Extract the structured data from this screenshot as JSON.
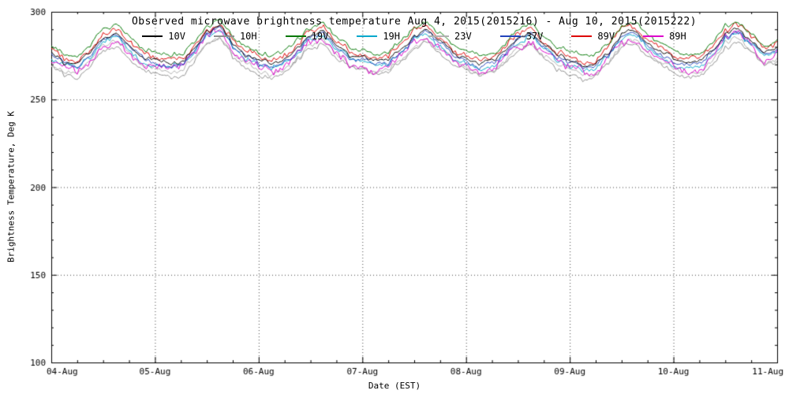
{
  "chart_data": {
    "type": "line",
    "title": "Observed microwave brightness temperature Aug 4, 2015(2015216) - Aug 10, 2015(2015222)",
    "xlabel": "Date (EST)",
    "ylabel": "Brightness Temperature, Deg K",
    "ylim": [
      100,
      300
    ],
    "xlim_days": [
      0,
      7
    ],
    "grid": "dotted",
    "legend_position": "top-inside",
    "yticks": [
      100,
      150,
      200,
      250,
      300
    ],
    "ytick_minor_step": 10,
    "xticks": [
      "04-Aug",
      "05-Aug",
      "06-Aug",
      "07-Aug",
      "08-Aug",
      "09-Aug",
      "10-Aug",
      "11-Aug"
    ],
    "xtick_minor_step_days": 0.25,
    "baseline_anchor_step_hours": 3,
    "baseline_mean_K": [
      276,
      271,
      270,
      276,
      285,
      288,
      280,
      274,
      272,
      270,
      271,
      278,
      288,
      291,
      282,
      275,
      272,
      270,
      272,
      279,
      287,
      289,
      281,
      275,
      273,
      271,
      272,
      278,
      286,
      290,
      283,
      276,
      273,
      270,
      271,
      277,
      285,
      288,
      281,
      275,
      272,
      269,
      270,
      277,
      286,
      289,
      282,
      276,
      273,
      270,
      271,
      278,
      287,
      290,
      283,
      277,
      278
    ],
    "series": [
      {
        "name": "10V",
        "color": "#000000",
        "offset_K": 0.5,
        "noise_K": 0.9
      },
      {
        "name": "10H",
        "color": "#909090",
        "offset_K": -7.0,
        "noise_K": 1.3
      },
      {
        "name": "19V",
        "color": "#007700",
        "offset_K": 5.0,
        "noise_K": 1.3
      },
      {
        "name": "19H",
        "color": "#00a8cc",
        "offset_K": -2.0,
        "noise_K": 1.5
      },
      {
        "name": "23V",
        "color": "#b0b0b0",
        "offset_K": -5.0,
        "noise_K": 1.4
      },
      {
        "name": "37V",
        "color": "#2244bb",
        "offset_K": -0.8,
        "noise_K": 1.3
      },
      {
        "name": "89V",
        "color": "#dd0000",
        "offset_K": 2.5,
        "noise_K": 1.8
      },
      {
        "name": "89H",
        "color": "#dd00cc",
        "offset_K": -3.5,
        "noise_K": 2.6
      }
    ],
    "draw_order": [
      1,
      4,
      3,
      7,
      5,
      6,
      0,
      2
    ]
  }
}
